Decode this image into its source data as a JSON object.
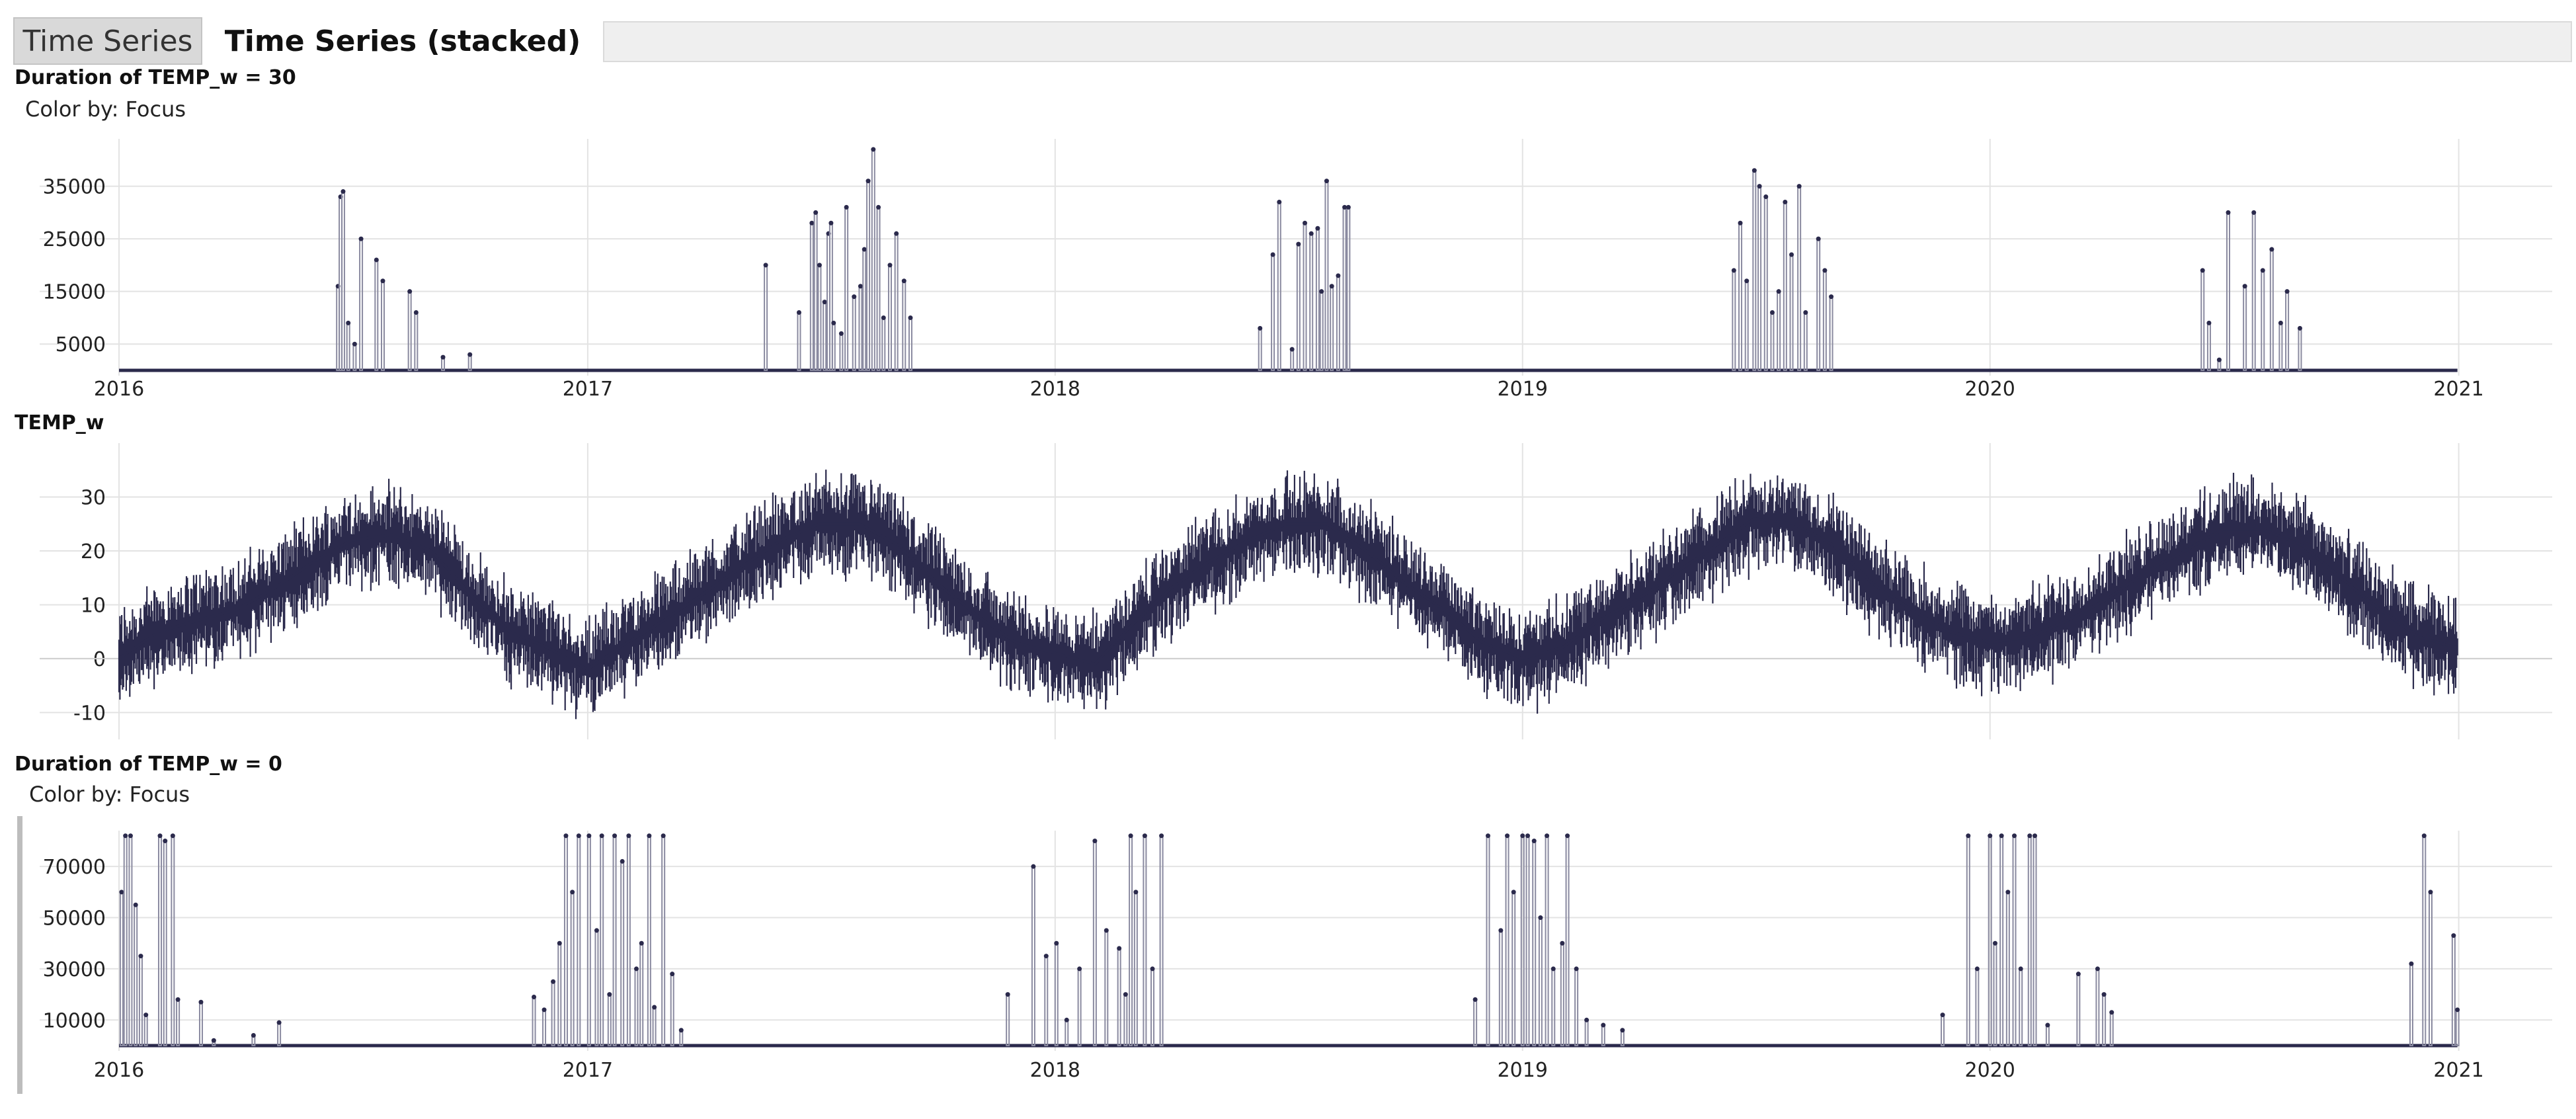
{
  "tabs": [
    {
      "label": "Time Series",
      "active": false
    },
    {
      "label": "Time Series (stacked)",
      "active": true
    }
  ],
  "colors": {
    "series": "#2b2a4c",
    "grid": "#e3e3e3"
  },
  "chart_data": [
    {
      "type": "bar",
      "title": "Duration of TEMP_w = 30",
      "subtitle": "Color by: Focus",
      "xlabel": "",
      "ylabel": "",
      "xlim": [
        "2016-01-01",
        "2021-03-15"
      ],
      "ylim": [
        0,
        44000
      ],
      "yticks": [
        5000,
        15000,
        25000,
        35000
      ],
      "xticks": [
        "2016",
        "2017",
        "2018",
        "2019",
        "2020",
        "2021"
      ],
      "grid": true,
      "series": [
        {
          "x": [
            "2016-06-20",
            "2016-06-22",
            "2016-06-24",
            "2016-06-28",
            "2016-07-03",
            "2016-07-08",
            "2016-07-20",
            "2016-07-25",
            "2016-08-15",
            "2016-08-20",
            "2016-09-10",
            "2016-10-01",
            "2017-05-20",
            "2017-06-15",
            "2017-06-25",
            "2017-06-28",
            "2017-07-01",
            "2017-07-05",
            "2017-07-08",
            "2017-07-10",
            "2017-07-12",
            "2017-07-18",
            "2017-07-22",
            "2017-07-28",
            "2017-08-02",
            "2017-08-05",
            "2017-08-08",
            "2017-08-12",
            "2017-08-16",
            "2017-08-20",
            "2017-08-25",
            "2017-08-30",
            "2017-09-05",
            "2017-09-10",
            "2018-06-10",
            "2018-06-20",
            "2018-06-25",
            "2018-07-05",
            "2018-07-10",
            "2018-07-15",
            "2018-07-20",
            "2018-07-25",
            "2018-07-28",
            "2018-08-01",
            "2018-08-05",
            "2018-08-10",
            "2018-08-15",
            "2018-08-18",
            "2019-06-15",
            "2019-06-20",
            "2019-06-25",
            "2019-07-01",
            "2019-07-05",
            "2019-07-10",
            "2019-07-15",
            "2019-07-20",
            "2019-07-25",
            "2019-07-30",
            "2019-08-05",
            "2019-08-10",
            "2019-08-20",
            "2019-08-25",
            "2019-08-30",
            "2020-06-15",
            "2020-06-20",
            "2020-06-28",
            "2020-07-05",
            "2020-07-18",
            "2020-07-25",
            "2020-08-01",
            "2020-08-08",
            "2020-08-15",
            "2020-08-20",
            "2020-08-30"
          ],
          "y": [
            16000,
            33000,
            34000,
            9000,
            5000,
            25000,
            21000,
            17000,
            15000,
            11000,
            2500,
            3000,
            20000,
            11000,
            28000,
            30000,
            20000,
            13000,
            26000,
            28000,
            9000,
            7000,
            31000,
            14000,
            16000,
            23000,
            36000,
            42000,
            31000,
            10000,
            20000,
            26000,
            17000,
            10000,
            8000,
            22000,
            32000,
            4000,
            24000,
            28000,
            26000,
            27000,
            15000,
            36000,
            16000,
            18000,
            31000,
            31000,
            19000,
            28000,
            17000,
            38000,
            35000,
            33000,
            11000,
            15000,
            32000,
            22000,
            35000,
            11000,
            25000,
            19000,
            14000,
            19000,
            9000,
            2000,
            30000,
            16000,
            30000,
            19000,
            23000,
            9000,
            15000,
            8000
          ],
          "color": "#2b2a4c"
        }
      ]
    },
    {
      "type": "line",
      "title": "TEMP_w",
      "xlabel": "",
      "ylabel": "",
      "xlim": [
        "2016-01-01",
        "2021-03-15"
      ],
      "ylim": [
        -14,
        40
      ],
      "yticks": [
        -10,
        0,
        10,
        20,
        30
      ],
      "xticks": [
        "2016",
        "2017",
        "2018",
        "2019",
        "2020",
        "2021"
      ],
      "grid": true,
      "note_pattern": "hourly temperature, seasonal cycle",
      "series": [
        {
          "x": [
            "2016-01-01",
            "2016-02-01",
            "2016-03-01",
            "2016-04-01",
            "2016-05-01",
            "2016-06-01",
            "2016-07-01",
            "2016-08-01",
            "2016-09-01",
            "2016-10-01",
            "2016-11-01",
            "2016-12-01",
            "2017-01-01",
            "2017-02-01",
            "2017-03-01",
            "2017-04-01",
            "2017-05-01",
            "2017-06-01",
            "2017-07-01",
            "2017-08-01",
            "2017-09-01",
            "2017-10-01",
            "2017-11-01",
            "2017-12-01",
            "2018-01-01",
            "2018-02-01",
            "2018-03-01",
            "2018-04-01",
            "2018-05-01",
            "2018-06-01",
            "2018-07-01",
            "2018-08-01",
            "2018-09-01",
            "2018-10-01",
            "2018-11-01",
            "2018-12-01",
            "2019-01-01",
            "2019-02-01",
            "2019-03-01",
            "2019-04-01",
            "2019-05-01",
            "2019-06-01",
            "2019-07-01",
            "2019-08-01",
            "2019-09-01",
            "2019-10-01",
            "2019-11-01",
            "2019-12-01",
            "2020-01-01",
            "2020-02-01",
            "2020-03-01",
            "2020-04-01",
            "2020-05-01",
            "2020-06-01",
            "2020-07-01",
            "2020-08-01",
            "2020-09-01",
            "2020-10-01",
            "2020-11-01",
            "2020-12-01",
            "2020-12-31"
          ],
          "y": [
            0,
            5,
            7,
            9,
            13,
            18,
            22,
            23,
            20,
            12,
            5,
            2,
            -2,
            3,
            7,
            12,
            17,
            22,
            25,
            25,
            21,
            14,
            8,
            3,
            1,
            -1,
            6,
            13,
            18,
            22,
            25,
            25,
            20,
            14,
            9,
            3,
            0,
            2,
            7,
            11,
            16,
            21,
            26,
            25,
            21,
            14,
            9,
            5,
            3,
            4,
            7,
            11,
            16,
            20,
            24,
            24,
            21,
            15,
            9,
            4,
            2
          ],
          "min": -12,
          "max": 38,
          "color": "#2b2a4c"
        }
      ]
    },
    {
      "type": "bar",
      "title": "Duration of TEMP_w = 0",
      "subtitle": "Color by: Focus",
      "xlabel": "",
      "ylabel": "",
      "xlim": [
        "2016-01-01",
        "2021-03-15"
      ],
      "ylim": [
        0,
        84000
      ],
      "yticks": [
        10000,
        30000,
        50000,
        70000
      ],
      "xticks": [
        "2016",
        "2017",
        "2018",
        "2019",
        "2020",
        "2021"
      ],
      "grid": true,
      "series": [
        {
          "x": [
            "2016-01-03",
            "2016-01-06",
            "2016-01-10",
            "2016-01-14",
            "2016-01-18",
            "2016-01-22",
            "2016-02-02",
            "2016-02-06",
            "2016-02-12",
            "2016-02-16",
            "2016-03-05",
            "2016-03-15",
            "2016-04-15",
            "2016-05-05",
            "2016-11-20",
            "2016-11-28",
            "2016-12-05",
            "2016-12-10",
            "2016-12-15",
            "2016-12-20",
            "2016-12-25",
            "2017-01-02",
            "2017-01-08",
            "2017-01-12",
            "2017-01-18",
            "2017-01-22",
            "2017-01-28",
            "2017-02-02",
            "2017-02-08",
            "2017-02-12",
            "2017-02-18",
            "2017-02-22",
            "2017-03-01",
            "2017-03-08",
            "2017-03-15",
            "2017-11-25",
            "2017-12-15",
            "2017-12-25",
            "2018-01-02",
            "2018-01-10",
            "2018-01-20",
            "2018-02-01",
            "2018-02-10",
            "2018-02-20",
            "2018-02-25",
            "2018-03-01",
            "2018-03-05",
            "2018-03-12",
            "2018-03-18",
            "2018-03-25",
            "2018-11-25",
            "2018-12-05",
            "2018-12-15",
            "2018-12-20",
            "2018-12-25",
            "2019-01-01",
            "2019-01-05",
            "2019-01-10",
            "2019-01-15",
            "2019-01-20",
            "2019-01-25",
            "2019-02-01",
            "2019-02-05",
            "2019-02-12",
            "2019-02-20",
            "2019-03-05",
            "2019-03-20",
            "2019-11-25",
            "2019-12-15",
            "2019-12-22",
            "2020-01-01",
            "2020-01-05",
            "2020-01-10",
            "2020-01-15",
            "2020-01-20",
            "2020-01-25",
            "2020-02-01",
            "2020-02-05",
            "2020-02-15",
            "2020-03-10",
            "2020-03-25",
            "2020-03-30",
            "2020-04-05",
            "2020-11-25",
            "2020-12-05",
            "2020-12-10",
            "2020-12-28",
            "2020-12-31"
          ],
          "y": [
            60000,
            82000,
            82000,
            55000,
            35000,
            12000,
            82000,
            80000,
            82000,
            18000,
            17000,
            2000,
            4000,
            9000,
            19000,
            14000,
            25000,
            40000,
            82000,
            60000,
            82000,
            82000,
            45000,
            82000,
            20000,
            82000,
            72000,
            82000,
            30000,
            40000,
            82000,
            15000,
            82000,
            28000,
            6000,
            20000,
            70000,
            35000,
            40000,
            10000,
            30000,
            80000,
            45000,
            38000,
            20000,
            82000,
            60000,
            82000,
            30000,
            82000,
            18000,
            82000,
            45000,
            82000,
            60000,
            82000,
            82000,
            80000,
            50000,
            82000,
            30000,
            40000,
            82000,
            30000,
            10000,
            8000,
            6000,
            12000,
            82000,
            30000,
            82000,
            40000,
            82000,
            60000,
            82000,
            30000,
            82000,
            82000,
            8000,
            28000,
            30000,
            20000,
            13000,
            32000,
            82000,
            60000,
            43000,
            14000
          ],
          "color": "#2b2a4c"
        }
      ]
    }
  ]
}
